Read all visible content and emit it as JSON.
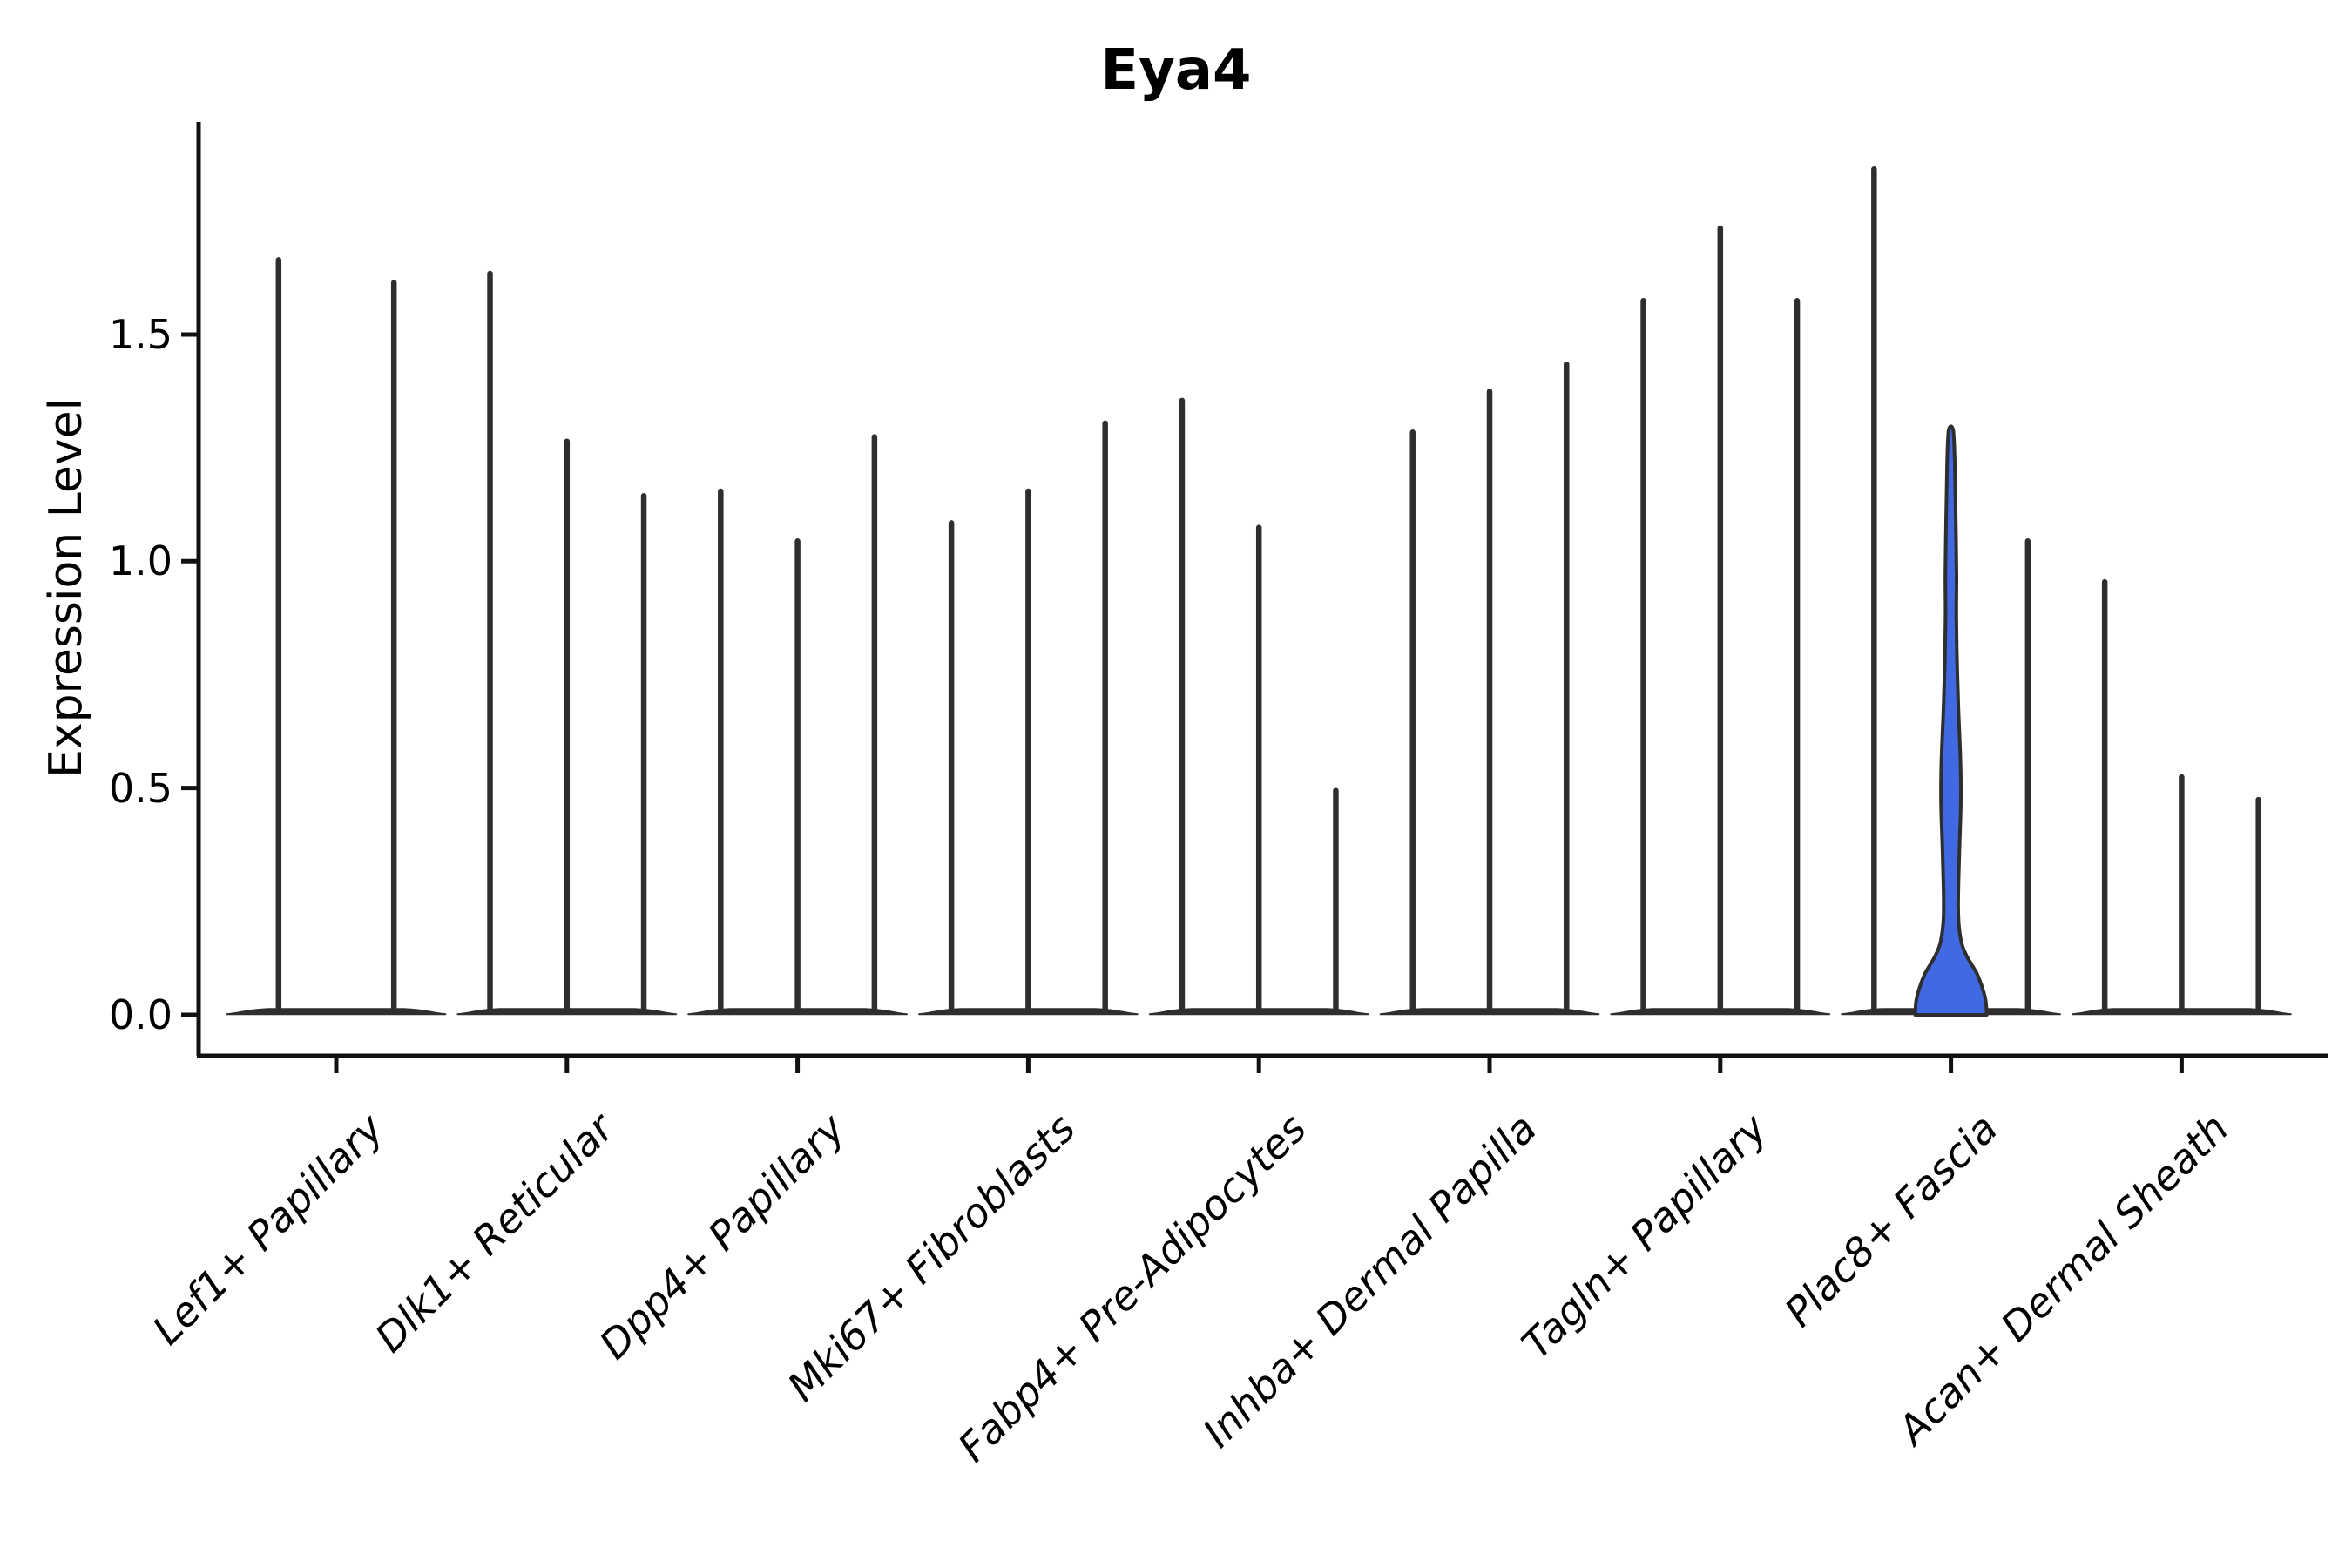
{
  "title": "Eya4",
  "axes": {
    "ylabel": "Expression Level",
    "ytick_labels": [
      "0.0",
      "0.5",
      "1.0",
      "1.5"
    ]
  },
  "colors": {
    "outline": "#2e2e2e",
    "spine": "#111111",
    "highlight_fill": "#4169e1"
  },
  "chart_data": {
    "type": "violin",
    "title": "Eya4",
    "xlabel": "",
    "ylabel": "Expression Level",
    "ylim": [
      -0.09,
      1.97
    ],
    "yticks": [
      0.0,
      0.5,
      1.0,
      1.5
    ],
    "grid": false,
    "legend": "none",
    "categories": [
      "Lef1+ Papillary",
      "Dlk1+ Reticular",
      "Dpp4+ Papillary",
      "Mki67+ Fibroblasts",
      "Fabp4+ Pre-Adipocytes",
      "Inhba+ Dermal Papilla",
      "Tagln+ Papillary",
      "Plac8+ Fascia",
      "Acan+ Dermal Sheath"
    ],
    "description": "Each category shows needle-thin violins (almost all expression values at 0) with max expression tips listed below; Plac8+ Fascia's middle violin is blue-filled with substantial density between 0 and 0.6.",
    "groups": [
      {
        "category": "Lef1+ Papillary",
        "violins": [
          {
            "max": 1.67
          },
          {
            "max": 1.62
          }
        ]
      },
      {
        "category": "Dlk1+ Reticular",
        "violins": [
          {
            "max": 1.64
          },
          {
            "max": 1.27
          },
          {
            "max": 1.15
          }
        ]
      },
      {
        "category": "Dpp4+ Papillary",
        "violins": [
          {
            "max": 1.16
          },
          {
            "max": 1.05
          },
          {
            "max": 1.28
          }
        ]
      },
      {
        "category": "Mki67+ Fibroblasts",
        "violins": [
          {
            "max": 1.09
          },
          {
            "max": 1.16
          },
          {
            "max": 1.31
          }
        ]
      },
      {
        "category": "Fabp4+ Pre-Adipocytes",
        "violins": [
          {
            "max": 1.36
          },
          {
            "max": 1.08
          },
          {
            "max": 0.5
          }
        ]
      },
      {
        "category": "Inhba+ Dermal Papilla",
        "violins": [
          {
            "max": 1.29
          },
          {
            "max": 1.38
          },
          {
            "max": 1.44
          }
        ]
      },
      {
        "category": "Tagln+ Papillary",
        "violins": [
          {
            "max": 1.58
          },
          {
            "max": 1.74
          },
          {
            "max": 1.58
          }
        ]
      },
      {
        "category": "Plac8+ Fascia",
        "violins": [
          {
            "max": 1.87
          },
          {
            "max": 1.29,
            "highlight": true,
            "profile": [
              [
                0,
                41
              ],
              [
                0.03,
                40
              ],
              [
                0.06,
                36
              ],
              [
                0.09,
                30
              ],
              [
                0.11,
                24
              ],
              [
                0.13,
                18
              ],
              [
                0.15,
                13.5
              ],
              [
                0.17,
                11
              ],
              [
                0.2,
                9
              ],
              [
                0.24,
                8.3
              ],
              [
                0.3,
                8.8
              ],
              [
                0.38,
                10
              ],
              [
                0.46,
                11.3
              ],
              [
                0.53,
                11.3
              ],
              [
                0.6,
                10.2
              ],
              [
                0.68,
                8.5
              ],
              [
                0.78,
                7
              ],
              [
                0.88,
                6.2
              ],
              [
                0.97,
                6.4
              ],
              [
                1.06,
                5.8
              ],
              [
                1.15,
                5
              ],
              [
                1.23,
                4.2
              ],
              [
                1.29,
                2.5
              ]
            ]
          },
          {
            "max": 1.05
          }
        ]
      },
      {
        "category": "Acan+ Dermal Sheath",
        "violins": [
          {
            "max": 0.96
          },
          {
            "max": 0.53
          },
          {
            "max": 0.48
          }
        ]
      }
    ]
  }
}
